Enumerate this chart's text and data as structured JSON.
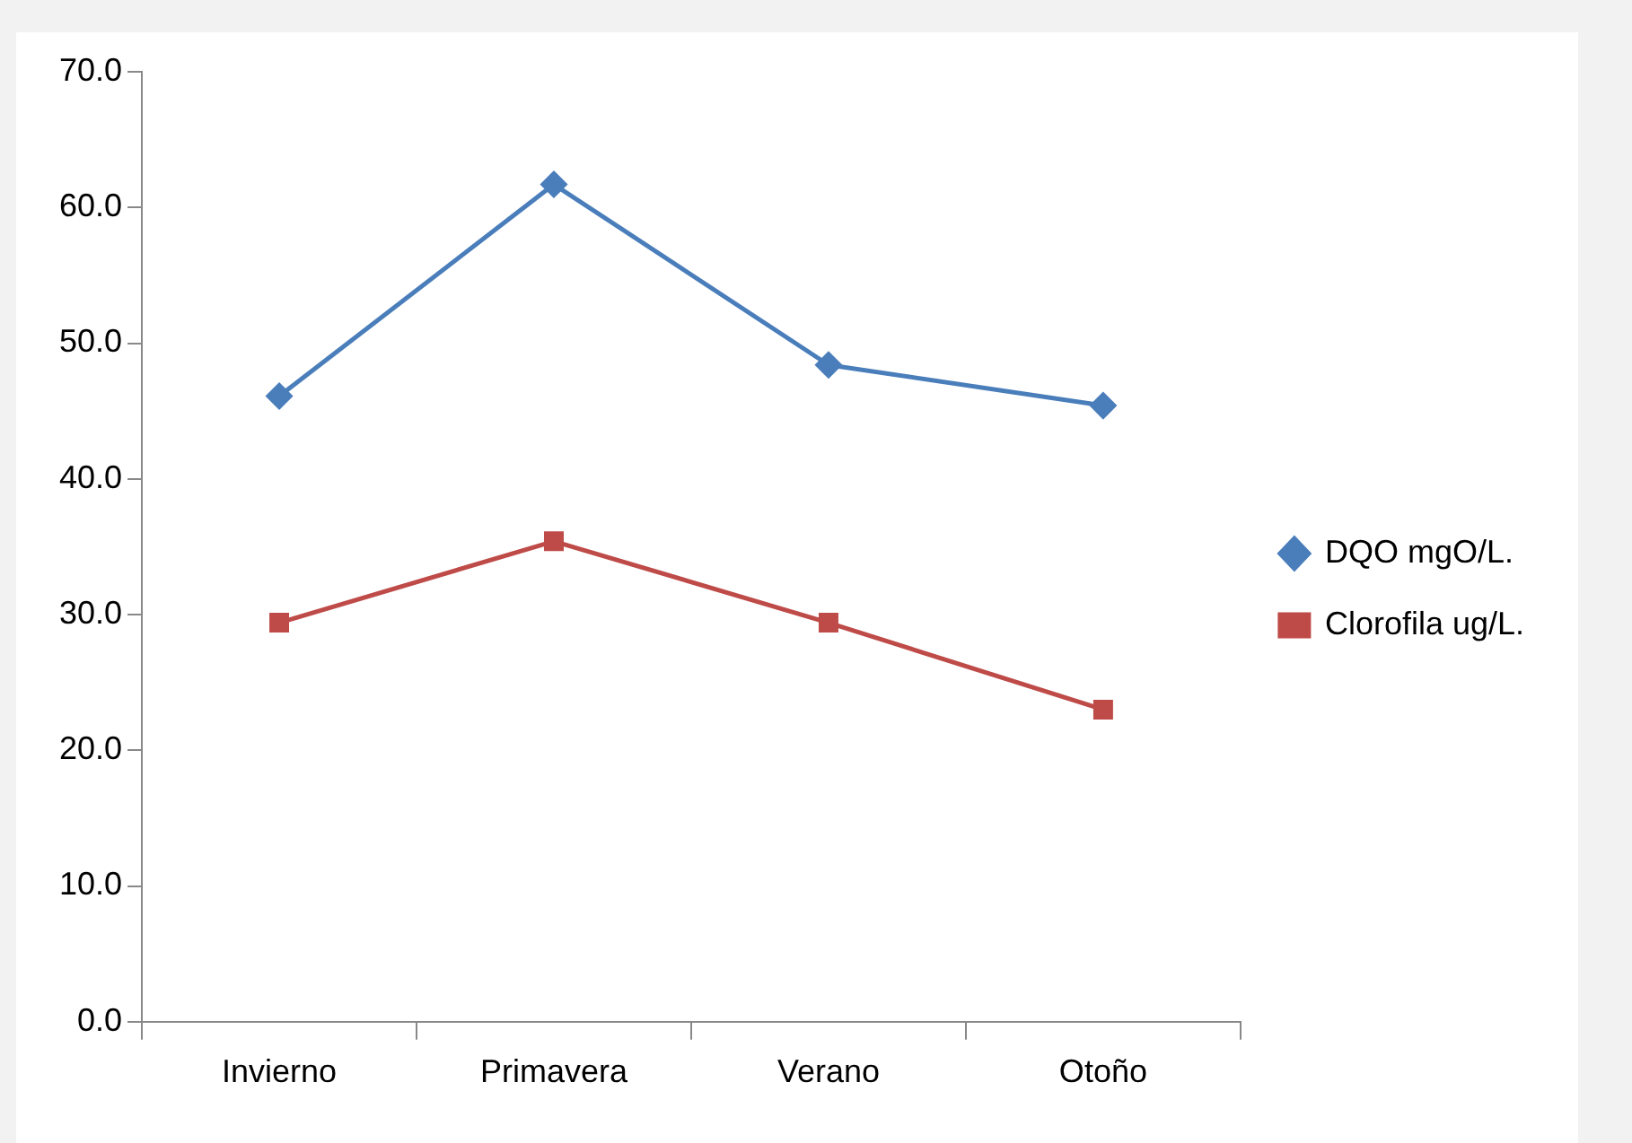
{
  "chart_data": {
    "type": "line",
    "categories": [
      "Invierno",
      "Primavera",
      "Verano",
      "Otoño"
    ],
    "series": [
      {
        "name": "DQO mgO/L.",
        "color": "#4a7ebb",
        "marker": "diamond",
        "values": [
          46.1,
          61.7,
          48.4,
          45.4
        ]
      },
      {
        "name": "Clorofila ug/L.",
        "color": "#be4b48",
        "marker": "square",
        "values": [
          29.4,
          35.4,
          29.4,
          23.0
        ]
      }
    ],
    "ylim": [
      0,
      70
    ],
    "yticks": [
      {
        "value": 0,
        "label": "0.0"
      },
      {
        "value": 10,
        "label": "10.0"
      },
      {
        "value": 20,
        "label": "20.0"
      },
      {
        "value": 30,
        "label": "30.0"
      },
      {
        "value": 40,
        "label": "40.0"
      },
      {
        "value": 50,
        "label": "50.0"
      },
      {
        "value": 60,
        "label": "60.0"
      },
      {
        "value": 70,
        "label": "70.0"
      }
    ],
    "grid": false,
    "legend": "right",
    "line_style": "solid"
  }
}
